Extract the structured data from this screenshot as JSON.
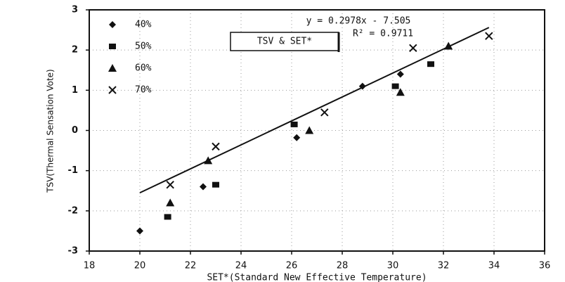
{
  "chart_data": {
    "type": "scatter",
    "title": "TSV & SET*",
    "x_label": "SET*(Standard New Effective Temperature)",
    "y_label": "TSV(Thermal Sensation Vote)",
    "equation": "y = 0.2978x - 7.505",
    "r_squared": "R² = 0.9711",
    "xlim": [
      18,
      36
    ],
    "ylim": [
      -3,
      3
    ],
    "xticks": [
      18,
      20,
      22,
      24,
      26,
      28,
      30,
      32,
      34,
      36
    ],
    "yticks": [
      -3,
      -2,
      -1,
      0,
      1,
      2,
      3
    ],
    "grid": true,
    "legend": "top-left",
    "series": [
      {
        "name": "40%",
        "color": "#111111",
        "marker": "diamond",
        "x": [
          20,
          22.5,
          26.2,
          28.8,
          30.3
        ],
        "values": [
          -2.5,
          -1.4,
          -0.18,
          1.1,
          1.4
        ]
      },
      {
        "name": "50%",
        "color": "#111111",
        "marker": "square",
        "x": [
          21.1,
          23,
          26.1,
          30.1,
          31.5
        ],
        "values": [
          -2.15,
          -1.35,
          0.15,
          1.1,
          1.65
        ]
      },
      {
        "name": "60%",
        "color": "#111111",
        "marker": "triangle",
        "x": [
          21.2,
          22.7,
          26.7,
          30.3,
          32.2
        ],
        "values": [
          -1.8,
          -0.75,
          0.0,
          0.95,
          2.1
        ]
      },
      {
        "name": "70%",
        "color": "#111111",
        "marker": "cross",
        "x": [
          21.2,
          23,
          27.3,
          30.8,
          33.8
        ],
        "values": [
          -1.35,
          -0.4,
          0.45,
          2.05,
          2.35
        ]
      }
    ],
    "trendline": {
      "color": "#111111",
      "x": [
        20,
        33.8
      ],
      "values": [
        -1.55,
        2.56
      ]
    }
  }
}
